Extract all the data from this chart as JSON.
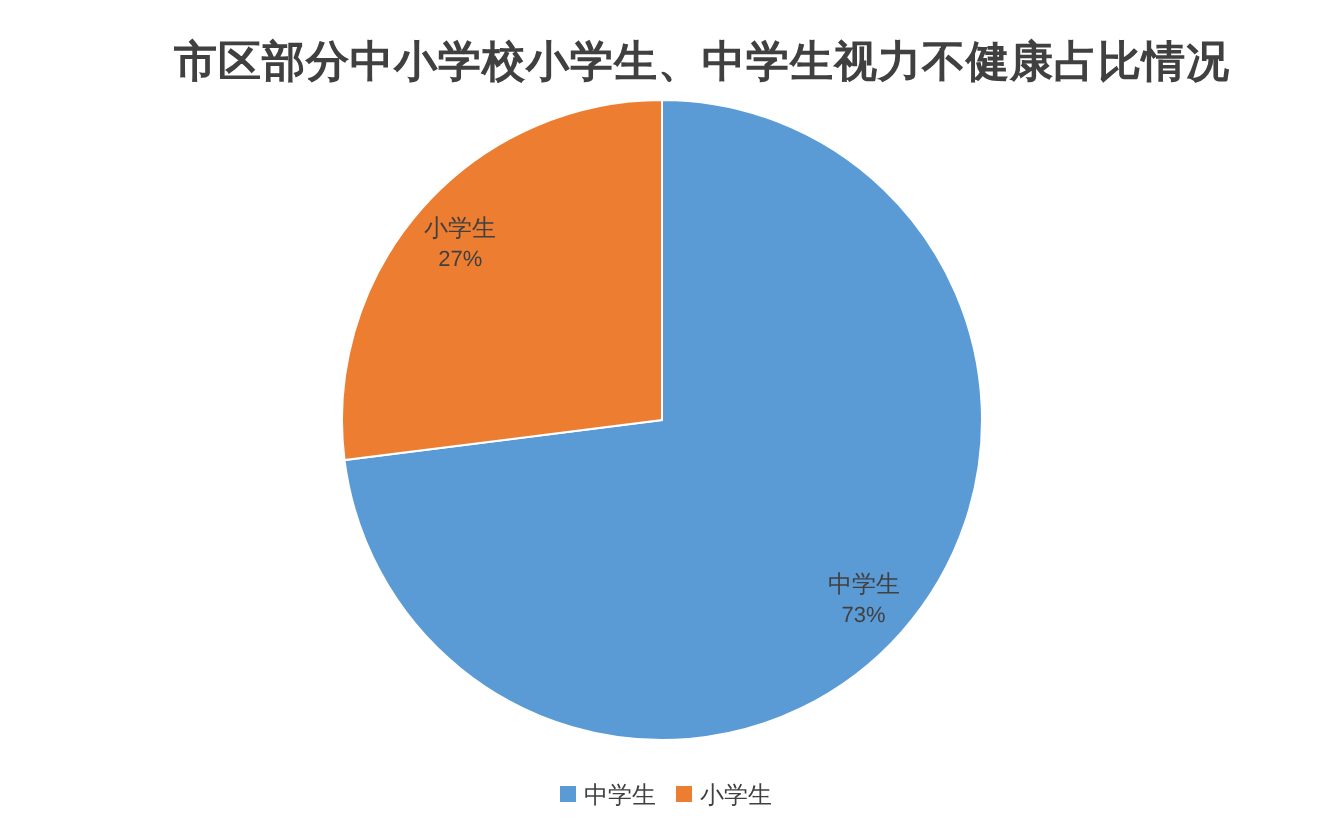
{
  "chart_data": {
    "type": "pie",
    "title": "市区部分中小学校小学生、中学生视力不健康占比情况",
    "categories": [
      "中学生",
      "小学生"
    ],
    "values": [
      73,
      27
    ],
    "colors": [
      "#5b9bd5",
      "#ed7d31"
    ],
    "value_labels": [
      "73%",
      "27%"
    ],
    "legend": "bottom"
  }
}
